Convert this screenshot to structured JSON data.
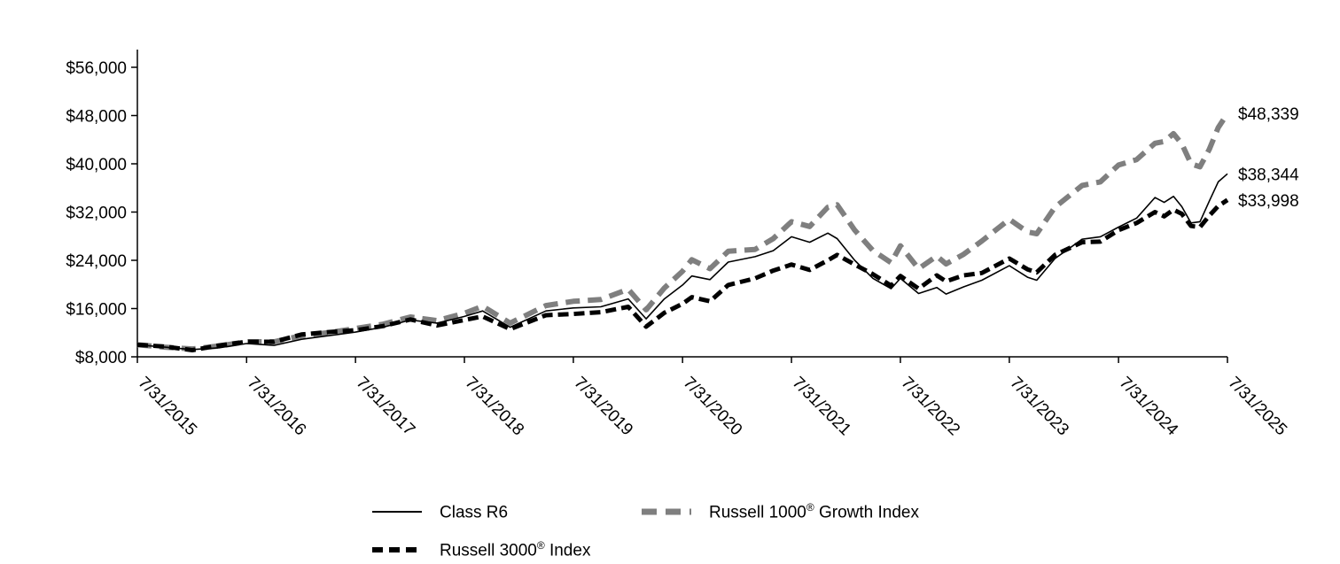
{
  "chart_data": {
    "type": "line",
    "title": "",
    "xlabel": "",
    "ylabel": "",
    "ylim": [
      8000,
      56000
    ],
    "y_ticks": [
      8000,
      16000,
      24000,
      32000,
      40000,
      48000,
      56000
    ],
    "y_tick_labels": [
      "$8,000",
      "$16,000",
      "$24,000",
      "$32,000",
      "$40,000",
      "$48,000",
      "$56,000"
    ],
    "x_ticks": [
      "7/31/2015",
      "7/31/2016",
      "7/31/2017",
      "7/31/2018",
      "7/31/2019",
      "7/31/2020",
      "7/31/2021",
      "7/31/2022",
      "7/31/2023",
      "7/31/2024",
      "7/31/2025"
    ],
    "grid": false,
    "legend_position": "bottom",
    "series": [
      {
        "name": "Class R6",
        "style": "solid-thin",
        "color": "#000000",
        "end_label": "$38,344",
        "points": [
          [
            "7/31/2015",
            10000
          ],
          [
            "10/31/2015",
            9600
          ],
          [
            "1/31/2016",
            9200
          ],
          [
            "4/30/2016",
            9500
          ],
          [
            "7/31/2016",
            10200
          ],
          [
            "10/31/2016",
            9900
          ],
          [
            "1/31/2017",
            10900
          ],
          [
            "4/30/2017",
            11500
          ],
          [
            "7/31/2017",
            12100
          ],
          [
            "10/31/2017",
            12900
          ],
          [
            "1/31/2018",
            14100
          ],
          [
            "4/30/2018",
            13600
          ],
          [
            "7/31/2018",
            14700
          ],
          [
            "9/30/2018",
            15600
          ],
          [
            "12/31/2018",
            12900
          ],
          [
            "4/30/2019",
            15600
          ],
          [
            "7/31/2019",
            16100
          ],
          [
            "10/31/2019",
            16300
          ],
          [
            "1/31/2020",
            17600
          ],
          [
            "3/31/2020",
            14300
          ],
          [
            "5/31/2020",
            17600
          ],
          [
            "7/31/2020",
            19900
          ],
          [
            "8/31/2020",
            21400
          ],
          [
            "10/31/2020",
            20800
          ],
          [
            "12/31/2020",
            23700
          ],
          [
            "3/31/2021",
            24600
          ],
          [
            "5/31/2021",
            25600
          ],
          [
            "7/31/2021",
            27900
          ],
          [
            "9/30/2021",
            27000
          ],
          [
            "11/30/2021",
            28500
          ],
          [
            "12/31/2021",
            27600
          ],
          [
            "2/28/2022",
            24000
          ],
          [
            "4/30/2022",
            21000
          ],
          [
            "6/30/2022",
            19300
          ],
          [
            "7/31/2022",
            21000
          ],
          [
            "9/30/2022",
            18500
          ],
          [
            "11/30/2022",
            19500
          ],
          [
            "12/31/2022",
            18400
          ],
          [
            "2/28/2023",
            19600
          ],
          [
            "4/30/2023",
            20700
          ],
          [
            "7/31/2023",
            23100
          ],
          [
            "9/30/2023",
            21200
          ],
          [
            "10/31/2023",
            20700
          ],
          [
            "12/31/2023",
            24300
          ],
          [
            "3/31/2024",
            27500
          ],
          [
            "5/31/2024",
            27900
          ],
          [
            "7/31/2024",
            29500
          ],
          [
            "9/30/2024",
            31000
          ],
          [
            "11/30/2024",
            34400
          ],
          [
            "12/31/2024",
            33600
          ],
          [
            "1/31/2025",
            34600
          ],
          [
            "2/28/2025",
            32900
          ],
          [
            "3/31/2025",
            30200
          ],
          [
            "4/30/2025",
            30400
          ],
          [
            "5/31/2025",
            33800
          ],
          [
            "6/30/2025",
            37000
          ],
          [
            "7/31/2025",
            38344
          ]
        ]
      },
      {
        "name": "Russell 1000® Growth Index",
        "style": "dashed-gray",
        "color": "#7f7f7f",
        "end_label": "$48,339",
        "points": [
          [
            "7/31/2015",
            10000
          ],
          [
            "10/31/2015",
            9600
          ],
          [
            "1/31/2016",
            9300
          ],
          [
            "4/30/2016",
            9800
          ],
          [
            "7/31/2016",
            10500
          ],
          [
            "10/31/2016",
            10500
          ],
          [
            "1/31/2017",
            11500
          ],
          [
            "4/30/2017",
            12000
          ],
          [
            "7/31/2017",
            12700
          ],
          [
            "10/31/2017",
            13400
          ],
          [
            "1/31/2018",
            14600
          ],
          [
            "4/30/2018",
            14000
          ],
          [
            "7/31/2018",
            15200
          ],
          [
            "9/30/2018",
            16400
          ],
          [
            "12/31/2018",
            13600
          ],
          [
            "4/30/2019",
            16500
          ],
          [
            "7/31/2019",
            17200
          ],
          [
            "10/31/2019",
            17500
          ],
          [
            "1/31/2020",
            19200
          ],
          [
            "3/31/2020",
            15800
          ],
          [
            "5/31/2020",
            19400
          ],
          [
            "7/31/2020",
            22200
          ],
          [
            "8/31/2020",
            24100
          ],
          [
            "10/31/2020",
            22600
          ],
          [
            "12/31/2020",
            25500
          ],
          [
            "3/31/2021",
            25800
          ],
          [
            "5/31/2021",
            27600
          ],
          [
            "7/31/2021",
            30400
          ],
          [
            "9/30/2021",
            29600
          ],
          [
            "11/30/2021",
            32800
          ],
          [
            "12/31/2021",
            33200
          ],
          [
            "2/28/2022",
            29000
          ],
          [
            "4/30/2022",
            25600
          ],
          [
            "6/30/2022",
            23600
          ],
          [
            "7/31/2022",
            26400
          ],
          [
            "9/30/2022",
            22600
          ],
          [
            "11/30/2022",
            24700
          ],
          [
            "12/31/2022",
            23400
          ],
          [
            "2/28/2023",
            25000
          ],
          [
            "4/30/2023",
            27200
          ],
          [
            "7/31/2023",
            30800
          ],
          [
            "9/30/2023",
            28700
          ],
          [
            "10/31/2023",
            28400
          ],
          [
            "12/31/2023",
            32800
          ],
          [
            "3/31/2024",
            36400
          ],
          [
            "5/31/2024",
            37000
          ],
          [
            "7/31/2024",
            39800
          ],
          [
            "9/30/2024",
            40700
          ],
          [
            "11/30/2024",
            43400
          ],
          [
            "12/31/2024",
            43700
          ],
          [
            "1/31/2025",
            45000
          ],
          [
            "2/28/2025",
            43300
          ],
          [
            "3/31/2025",
            40000
          ],
          [
            "4/30/2025",
            39500
          ],
          [
            "5/31/2025",
            42400
          ],
          [
            "6/30/2025",
            46000
          ],
          [
            "7/31/2025",
            48339
          ]
        ]
      },
      {
        "name": "Russell 3000® Index",
        "style": "dashed-black",
        "color": "#000000",
        "end_label": "$33,998",
        "points": [
          [
            "7/31/2015",
            10000
          ],
          [
            "10/31/2015",
            9700
          ],
          [
            "1/31/2016",
            9100
          ],
          [
            "4/30/2016",
            9900
          ],
          [
            "7/31/2016",
            10500
          ],
          [
            "10/31/2016",
            10500
          ],
          [
            "1/31/2017",
            11700
          ],
          [
            "4/30/2017",
            12100
          ],
          [
            "7/31/2017",
            12400
          ],
          [
            "10/31/2017",
            13100
          ],
          [
            "1/31/2018",
            14200
          ],
          [
            "4/30/2018",
            13200
          ],
          [
            "7/31/2018",
            14100
          ],
          [
            "9/30/2018",
            14700
          ],
          [
            "12/31/2018",
            12600
          ],
          [
            "4/30/2019",
            14900
          ],
          [
            "7/31/2019",
            15100
          ],
          [
            "10/31/2019",
            15400
          ],
          [
            "1/31/2020",
            16300
          ],
          [
            "3/31/2020",
            13000
          ],
          [
            "5/31/2020",
            15300
          ],
          [
            "7/31/2020",
            16800
          ],
          [
            "8/31/2020",
            17900
          ],
          [
            "10/31/2020",
            17200
          ],
          [
            "12/31/2020",
            19900
          ],
          [
            "3/31/2021",
            21000
          ],
          [
            "5/31/2021",
            22300
          ],
          [
            "7/31/2021",
            23300
          ],
          [
            "9/30/2021",
            22400
          ],
          [
            "11/30/2021",
            24000
          ],
          [
            "12/31/2021",
            24900
          ],
          [
            "2/28/2022",
            23300
          ],
          [
            "4/30/2022",
            21700
          ],
          [
            "6/30/2022",
            19800
          ],
          [
            "7/31/2022",
            21400
          ],
          [
            "9/30/2022",
            19300
          ],
          [
            "11/30/2022",
            21500
          ],
          [
            "12/31/2022",
            20500
          ],
          [
            "2/28/2023",
            21500
          ],
          [
            "4/30/2023",
            21900
          ],
          [
            "7/31/2023",
            24300
          ],
          [
            "9/30/2023",
            22500
          ],
          [
            "10/31/2023",
            22000
          ],
          [
            "12/31/2023",
            24900
          ],
          [
            "3/31/2024",
            27000
          ],
          [
            "5/31/2024",
            27100
          ],
          [
            "7/31/2024",
            29000
          ],
          [
            "9/30/2024",
            30200
          ],
          [
            "11/30/2024",
            32000
          ],
          [
            "12/31/2024",
            31300
          ],
          [
            "1/31/2025",
            32400
          ],
          [
            "2/28/2025",
            31700
          ],
          [
            "3/31/2025",
            29700
          ],
          [
            "4/30/2025",
            29500
          ],
          [
            "5/31/2025",
            31400
          ],
          [
            "6/30/2025",
            33000
          ],
          [
            "7/31/2025",
            33998
          ]
        ]
      }
    ]
  },
  "legend": {
    "items": [
      {
        "label": "Class R6",
        "sup": "",
        "suffix": ""
      },
      {
        "label": "Russell 1000",
        "sup": "®",
        "suffix": " Growth Index"
      },
      {
        "label": "Russell 3000",
        "sup": "®",
        "suffix": " Index"
      }
    ]
  }
}
